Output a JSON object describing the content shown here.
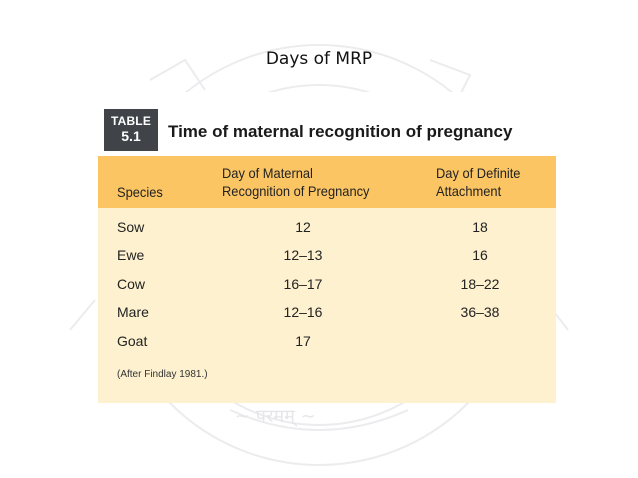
{
  "slide": {
    "title": "Days of MRP"
  },
  "table": {
    "badge_word": "TABLE",
    "badge_number": "5.1",
    "caption": "Time of maternal recognition of pregnancy",
    "columns": {
      "species": "Species",
      "recognition_line1": "Day of Maternal",
      "recognition_line2": "Recognition of Pregnancy",
      "attachment_line1": "Day of Definite",
      "attachment_line2": "Attachment"
    },
    "rows": [
      {
        "species": "Sow",
        "recognition": "12",
        "attachment": "18"
      },
      {
        "species": "Ewe",
        "recognition": "12–13",
        "attachment": "16"
      },
      {
        "species": "Cow",
        "recognition": "16–17",
        "attachment": "18–22"
      },
      {
        "species": "Mare",
        "recognition": "12–16",
        "attachment": "36–38"
      },
      {
        "species": "Goat",
        "recognition": "17",
        "attachment": ""
      }
    ],
    "footnote": "(After Findlay 1981.)"
  },
  "colors": {
    "header_band": "#fbc564",
    "table_body": "#fdf1cf",
    "badge": "#404448"
  }
}
